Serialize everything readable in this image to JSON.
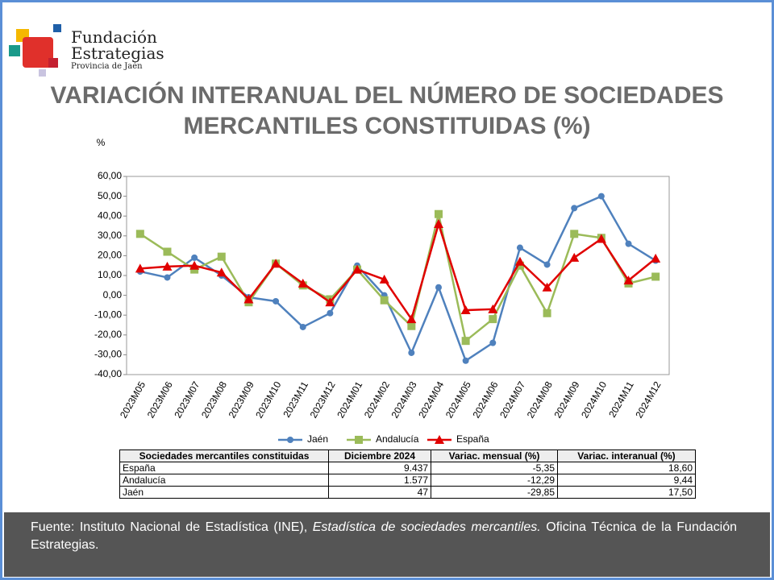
{
  "header": {
    "logo_lines": [
      "Fundación",
      "Estrategias",
      "Provincia de Jaén"
    ]
  },
  "chart_data": {
    "type": "line",
    "title": "VARIACIÓN INTERANUAL DEL NÚMERO DE SOCIEDADES\nMERCANTILES CONSTITUIDAS (%)",
    "y_unit": "%",
    "categories": [
      "2023M05",
      "2023M06",
      "2023M07",
      "2023M08",
      "2023M09",
      "2023M10",
      "2023M11",
      "2023M12",
      "2024M01",
      "2024M02",
      "2024M03",
      "2024M04",
      "2024M05",
      "2024M06",
      "2024M07",
      "2024M08",
      "2024M09",
      "2024M10",
      "2024M11",
      "2024M12"
    ],
    "series": [
      {
        "name": "Jaén",
        "color": "#4f81bd",
        "marker": "circle",
        "values": [
          12,
          9,
          19,
          10,
          -1,
          -3,
          -16,
          -9,
          15,
          0,
          -29,
          4,
          -33,
          -24,
          24,
          15.5,
          44,
          50,
          26,
          17.5
        ]
      },
      {
        "name": "Andalucía",
        "color": "#9bbb59",
        "marker": "square",
        "values": [
          31,
          22,
          13,
          19.5,
          -3.5,
          16,
          5,
          -2,
          13,
          -2.5,
          -15.5,
          41,
          -23,
          -12,
          15,
          -9,
          31,
          29,
          6,
          9.4
        ]
      },
      {
        "name": "España",
        "color": "#e00000",
        "marker": "triangle",
        "values": [
          13.5,
          14.5,
          15,
          11.5,
          -2,
          16,
          6,
          -3.5,
          13,
          8,
          -12,
          36,
          -7.5,
          -7,
          17,
          4,
          19,
          28.5,
          7.5,
          18.6
        ]
      }
    ],
    "ylim": [
      -40,
      60
    ],
    "yticks": [
      {
        "value": -40,
        "label": "-40,00"
      },
      {
        "value": -30,
        "label": "-30,00"
      },
      {
        "value": -20,
        "label": "-20,00"
      },
      {
        "value": -10,
        "label": "-10,00"
      },
      {
        "value": 0,
        "label": "0,00"
      },
      {
        "value": 10,
        "label": "10,00"
      },
      {
        "value": 20,
        "label": "20,00"
      },
      {
        "value": 30,
        "label": "30,00"
      },
      {
        "value": 40,
        "label": "40,00"
      },
      {
        "value": 50,
        "label": "50,00"
      },
      {
        "value": 60,
        "label": "60,00"
      }
    ],
    "grid": false,
    "legend": "bottom"
  },
  "table": {
    "header": [
      "Sociedades mercantiles constituidas",
      "Diciembre 2024",
      "Variac. mensual (%)",
      "Variac. interanual (%)"
    ],
    "rows": [
      [
        "España",
        "9.437",
        "-5,35",
        "18,60"
      ],
      [
        "Andalucía",
        "1.577",
        "-12,29",
        "9,44"
      ],
      [
        "Jaén",
        "47",
        "-29,85",
        "17,50"
      ]
    ]
  },
  "footer": {
    "parts": [
      "Fuente: Instituto Nacional de Estadística (INE), ",
      "Estadística de sociedades mercantiles.",
      " Oficina Técnica de la Fundación Estrategias."
    ]
  }
}
